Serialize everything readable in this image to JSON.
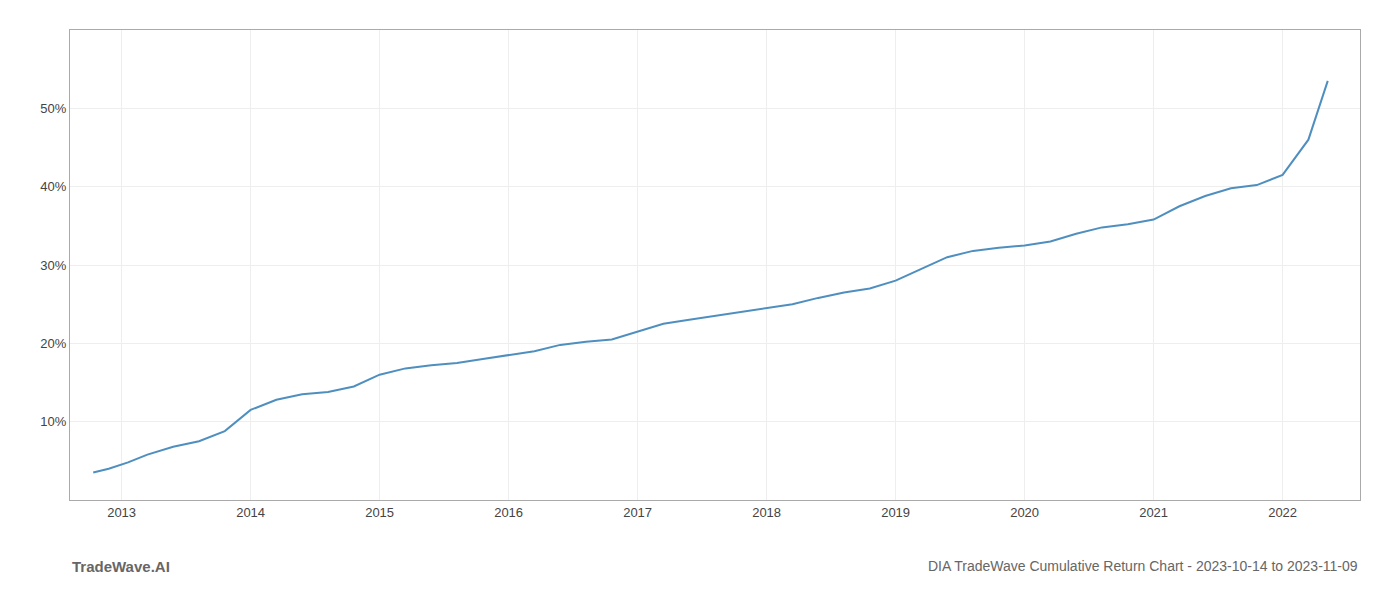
{
  "chart_data": {
    "type": "line",
    "title": "DIA TradeWave Cumulative Return Chart - 2023-10-14 to 2023-11-09",
    "annotations": [
      "TradeWave.AI"
    ],
    "x": [
      2012.78,
      2012.9,
      2013.05,
      2013.2,
      2013.4,
      2013.6,
      2013.8,
      2014.0,
      2014.2,
      2014.4,
      2014.6,
      2014.8,
      2015.0,
      2015.2,
      2015.4,
      2015.6,
      2015.8,
      2016.0,
      2016.2,
      2016.4,
      2016.6,
      2016.8,
      2017.0,
      2017.2,
      2017.4,
      2017.6,
      2017.8,
      2018.0,
      2018.2,
      2018.4,
      2018.6,
      2018.8,
      2019.0,
      2019.2,
      2019.4,
      2019.6,
      2019.8,
      2020.0,
      2020.2,
      2020.4,
      2020.6,
      2020.8,
      2021.0,
      2021.2,
      2021.4,
      2021.6,
      2021.8,
      2022.0,
      2022.2,
      2022.35
    ],
    "values": [
      3.5,
      4.0,
      4.8,
      5.8,
      6.8,
      7.5,
      8.8,
      11.5,
      12.8,
      13.5,
      13.8,
      14.5,
      16.0,
      16.8,
      17.2,
      17.5,
      18.0,
      18.5,
      19.0,
      19.8,
      20.2,
      20.5,
      21.5,
      22.5,
      23.0,
      23.5,
      24.0,
      24.5,
      25.0,
      25.8,
      26.5,
      27.0,
      28.0,
      29.5,
      31.0,
      31.8,
      32.2,
      32.5,
      33.0,
      34.0,
      34.8,
      35.2,
      35.8,
      37.5,
      38.8,
      39.8,
      40.2,
      41.5,
      46.0,
      53.5
    ],
    "color": "#4f8fbf",
    "xlim": [
      2012.6,
      2022.6
    ],
    "xticks": [
      2013,
      2014,
      2015,
      2016,
      2017,
      2018,
      2019,
      2020,
      2021,
      2022
    ],
    "ylim": [
      0,
      60
    ],
    "yticks": [
      {
        "value": 10,
        "label": "10%"
      },
      {
        "value": 20,
        "label": "20%"
      },
      {
        "value": 30,
        "label": "30%"
      },
      {
        "value": 40,
        "label": "40%"
      },
      {
        "value": 50,
        "label": "50%"
      }
    ],
    "grid": true
  }
}
